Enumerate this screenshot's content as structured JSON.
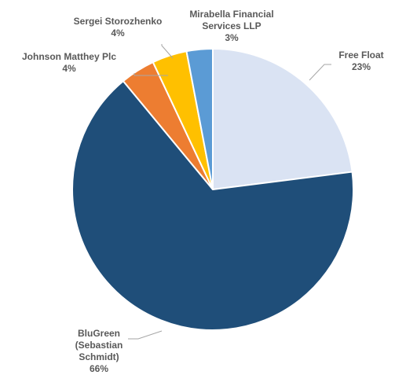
{
  "chart_data": {
    "type": "pie",
    "title": "",
    "slices": [
      {
        "label_lines": [
          "Free Float"
        ],
        "percent_label": "23%",
        "value": 23,
        "color": "#dae3f3"
      },
      {
        "label_lines": [
          "BluGreen",
          "(Sebastian",
          "Schmidt)"
        ],
        "percent_label": "66%",
        "value": 66,
        "color": "#1f4e79"
      },
      {
        "label_lines": [
          "Johnson  Matthey Plc"
        ],
        "percent_label": "4%",
        "value": 4,
        "color": "#ed7d31"
      },
      {
        "label_lines": [
          "Sergei Storozhenko"
        ],
        "percent_label": "4%",
        "value": 4,
        "color": "#ffc000"
      },
      {
        "label_lines": [
          "Mirabella Financial",
          "Services LLP"
        ],
        "percent_label": "3%",
        "value": 3,
        "color": "#5b9bd5"
      }
    ],
    "start_angle_deg": 0,
    "direction": "clockwise",
    "legend": "none",
    "data_labels": "outside-with-leader-lines"
  }
}
